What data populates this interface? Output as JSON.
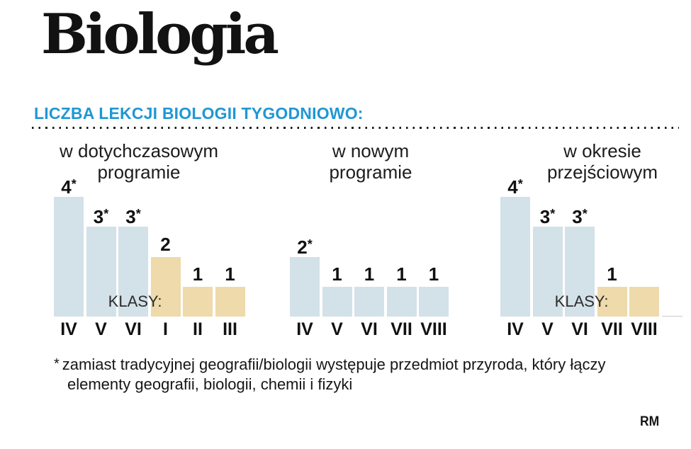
{
  "title": "Biologia",
  "section_heading": "LICZBA LEKCJI BIOLOGII TYGODNIOWO:",
  "colors": {
    "heading_blue": "#1f97d4",
    "bar_blue": "#d3e1e8",
    "bar_tan": "#eedaab",
    "text_dark": "#161616"
  },
  "chart_data": [
    {
      "type": "bar",
      "title_lines": [
        "w dotychczasowym",
        "programie"
      ],
      "categories": [
        "IV",
        "V",
        "VI",
        "I",
        "II",
        "III"
      ],
      "values": [
        4,
        3,
        3,
        2,
        1,
        1
      ],
      "value_labels": [
        "4*",
        "3*",
        "3*",
        "2",
        "1",
        "1"
      ],
      "bar_colors": [
        "blue",
        "blue",
        "blue",
        "tan",
        "tan",
        "tan"
      ],
      "side_label": "KLASY:",
      "ylim": [
        0,
        4
      ],
      "legend": "none",
      "grid": false
    },
    {
      "type": "bar",
      "title_lines": [
        "w nowym",
        "programie"
      ],
      "categories": [
        "IV",
        "V",
        "VI",
        "VII",
        "VIII"
      ],
      "values": [
        2,
        1,
        1,
        1,
        1
      ],
      "value_labels": [
        "2*",
        "1",
        "1",
        "1",
        "1"
      ],
      "bar_colors": [
        "blue",
        "blue",
        "blue",
        "blue",
        "blue"
      ],
      "side_label": "",
      "ylim": [
        0,
        4
      ],
      "legend": "none",
      "grid": false
    },
    {
      "type": "bar",
      "title_lines": [
        "w okresie",
        "przejściowym"
      ],
      "categories": [
        "IV",
        "V",
        "VI",
        "VII",
        "VIII"
      ],
      "values": [
        4,
        3,
        3,
        1,
        1
      ],
      "value_labels": [
        "4*",
        "3*",
        "3*",
        "1",
        ""
      ],
      "bar_colors": [
        "blue",
        "blue",
        "blue",
        "tan",
        "tan"
      ],
      "side_label": "KLASY:",
      "ylim": [
        0,
        4
      ],
      "legend": "none",
      "grid": false
    }
  ],
  "footnote": {
    "marker": "*",
    "line1": "zamiast tradycyjnej geografii/biologii występuje przedmiot przyroda, który łączy",
    "line2": "elementy geografii, biologii, chemii i fizyki"
  },
  "credit": "RM"
}
